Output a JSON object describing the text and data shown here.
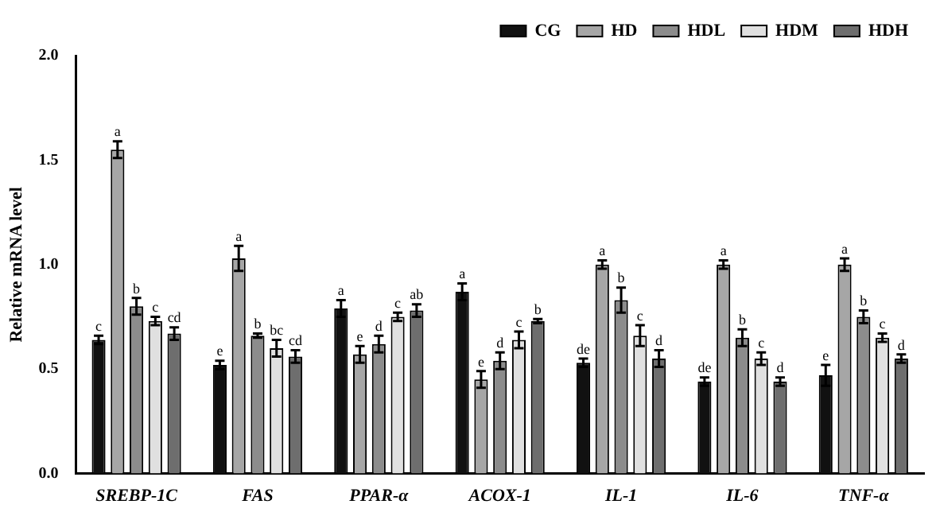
{
  "chart_data": {
    "type": "bar",
    "ylabel": "Relative mRNA level",
    "categories": [
      "SREBP-1C",
      "FAS",
      "PPAR-α",
      "ACOX-1",
      "IL-1",
      "IL-6",
      "TNF-α"
    ],
    "series": [
      {
        "name": "CG",
        "color": "#111111",
        "values": [
          0.64,
          0.52,
          0.79,
          0.87,
          0.53,
          0.44,
          0.47
        ],
        "errors": [
          0.02,
          0.02,
          0.04,
          0.04,
          0.02,
          0.02,
          0.05
        ],
        "value_labels": [
          "c",
          "e",
          "a",
          "a",
          "de",
          "de",
          "e"
        ]
      },
      {
        "name": "HD",
        "color": "#a6a6a6",
        "values": [
          1.55,
          1.03,
          0.57,
          0.45,
          1.0,
          1.0,
          1.0
        ],
        "errors": [
          0.04,
          0.06,
          0.04,
          0.04,
          0.02,
          0.02,
          0.03
        ],
        "value_labels": [
          "a",
          "a",
          "e",
          "e",
          "a",
          "a",
          "a"
        ]
      },
      {
        "name": "HDL",
        "color": "#8c8c8c",
        "values": [
          0.8,
          0.66,
          0.62,
          0.54,
          0.83,
          0.65,
          0.75
        ],
        "errors": [
          0.04,
          0.01,
          0.04,
          0.04,
          0.06,
          0.04,
          0.03
        ],
        "value_labels": [
          "b",
          "b",
          "d",
          "d",
          "b",
          "b",
          "b"
        ]
      },
      {
        "name": "HDM",
        "color": "#e0e0e0",
        "values": [
          0.73,
          0.6,
          0.75,
          0.64,
          0.66,
          0.55,
          0.65
        ],
        "errors": [
          0.02,
          0.04,
          0.02,
          0.04,
          0.05,
          0.03,
          0.02
        ],
        "value_labels": [
          "c",
          "bc",
          "c",
          "c",
          "c",
          "c",
          "c"
        ]
      },
      {
        "name": "HDH",
        "color": "#6e6e6e",
        "values": [
          0.67,
          0.56,
          0.78,
          0.73,
          0.55,
          0.44,
          0.55
        ],
        "errors": [
          0.03,
          0.03,
          0.03,
          0.01,
          0.04,
          0.02,
          0.02
        ],
        "value_labels": [
          "cd",
          "cd",
          "ab",
          "b",
          "d",
          "d",
          "d"
        ]
      }
    ],
    "ylim": [
      0,
      2.0
    ],
    "yticks": [
      {
        "value": 0,
        "label": "0.0"
      },
      {
        "value": 0.5,
        "label": "0.5"
      },
      {
        "value": 1.0,
        "label": "1.0"
      },
      {
        "value": 1.5,
        "label": "1.5"
      },
      {
        "value": 2.0,
        "label": "2.0"
      }
    ],
    "grid": false,
    "legend": "top right"
  }
}
